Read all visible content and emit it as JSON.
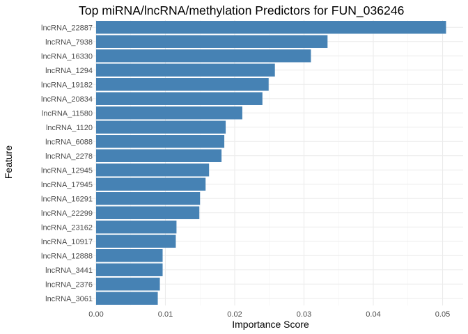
{
  "chart_data": {
    "type": "bar",
    "orientation": "horizontal",
    "title": "Top miRNA/lncRNA/methylation Predictors for FUN_036246",
    "xlabel": "Importance Score",
    "ylabel": "Feature",
    "xlim": [
      0,
      0.0525
    ],
    "x_ticks": [
      0.0,
      0.01,
      0.02,
      0.03,
      0.04,
      0.05
    ],
    "x_tick_labels": [
      "0.00",
      "0.01",
      "0.02",
      "0.03",
      "0.04",
      "0.05"
    ],
    "grid": true,
    "bar_color": "#4682b4",
    "categories": [
      "lncRNA_22887",
      "lncRNA_7938",
      "lncRNA_16330",
      "lncRNA_1294",
      "lncRNA_19182",
      "lncRNA_20834",
      "lncRNA_11580",
      "lncRNA_1120",
      "lncRNA_6088",
      "lncRNA_2278",
      "lncRNA_12945",
      "lncRNA_17945",
      "lncRNA_16291",
      "lncRNA_22299",
      "lncRNA_23162",
      "lncRNA_10917",
      "lncRNA_12888",
      "lncRNA_3441",
      "lncRNA_2376",
      "lncRNA_3061"
    ],
    "values": [
      0.0505,
      0.0334,
      0.031,
      0.0258,
      0.0249,
      0.024,
      0.0211,
      0.0187,
      0.0185,
      0.0181,
      0.0163,
      0.0158,
      0.015,
      0.0149,
      0.0116,
      0.0115,
      0.0096,
      0.0096,
      0.0092,
      0.0089
    ]
  }
}
